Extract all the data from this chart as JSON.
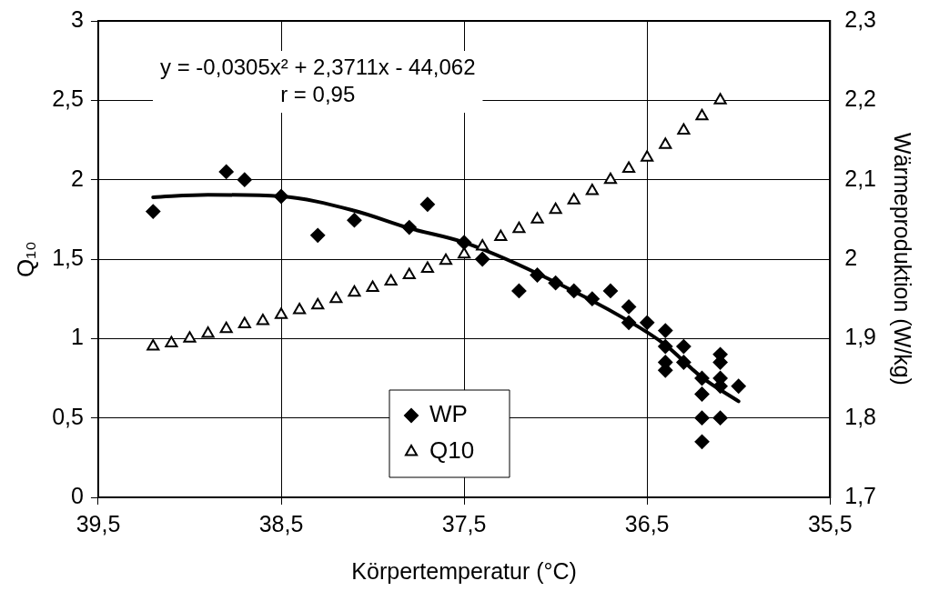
{
  "chart_data": {
    "type": "scatter",
    "xlabel": "Körpertemperatur (°C)",
    "ylabel": "Q₁₀",
    "y2label": "Wärmeproduktion (W/kg)",
    "xlim": [
      39.5,
      35.5
    ],
    "xticks": [
      {
        "value": 39.5,
        "label": "39,5"
      },
      {
        "value": 38.5,
        "label": "38,5"
      },
      {
        "value": 37.5,
        "label": "37,5"
      },
      {
        "value": 36.5,
        "label": "36,5"
      },
      {
        "value": 35.5,
        "label": "35,5"
      }
    ],
    "ylim": [
      0,
      3
    ],
    "yticks": [
      {
        "value": 0,
        "label": "0"
      },
      {
        "value": 0.5,
        "label": "0,5"
      },
      {
        "value": 1,
        "label": "1"
      },
      {
        "value": 1.5,
        "label": "1,5"
      },
      {
        "value": 2,
        "label": "2"
      },
      {
        "value": 2.5,
        "label": "2,5"
      },
      {
        "value": 3,
        "label": "3"
      }
    ],
    "y2lim": [
      1.7,
      2.3
    ],
    "y2ticks": [
      {
        "value": 1.7,
        "label": "1,7"
      },
      {
        "value": 1.8,
        "label": "1,8"
      },
      {
        "value": 1.9,
        "label": "1,9"
      },
      {
        "value": 2,
        "label": "2"
      },
      {
        "value": 2.1,
        "label": "2,1"
      },
      {
        "value": 2.2,
        "label": "2,2"
      },
      {
        "value": 2.3,
        "label": "2,3"
      }
    ],
    "grid": true,
    "legend": "bottom",
    "annotations": [
      "y = -0,0305x² + 2,3711x - 44,062",
      "r = 0,95"
    ],
    "series": [
      {
        "name": "WP",
        "color": "#000000",
        "marker": "diamond",
        "axis": "y2",
        "x": [
          39.2,
          38.8,
          38.7,
          38.5,
          38.3,
          38.1,
          37.8,
          37.7,
          37.5,
          37.4,
          37.2,
          37.1,
          37.0,
          36.9,
          36.8,
          36.7,
          36.6,
          36.6,
          36.5,
          36.4,
          36.4,
          36.4,
          36.4,
          36.3,
          36.3,
          36.2,
          36.2,
          36.2,
          36.2,
          36.1,
          36.1,
          36.1,
          36.1,
          36.1,
          36.0
        ],
        "values": [
          2.06,
          2.11,
          2.1,
          2.079,
          2.03,
          2.049,
          2.04,
          2.069,
          2.021,
          2.0,
          1.96,
          1.98,
          1.97,
          1.96,
          1.95,
          1.96,
          1.94,
          1.92,
          1.92,
          1.91,
          1.89,
          1.87,
          1.86,
          1.89,
          1.87,
          1.85,
          1.83,
          1.8,
          1.77,
          1.88,
          1.87,
          1.85,
          1.84,
          1.8,
          1.84
        ]
      },
      {
        "name": "Q10",
        "color": "#000000",
        "marker": "triangle",
        "x": [
          39.2,
          39.1,
          39.0,
          38.9,
          38.8,
          38.7,
          38.6,
          38.5,
          38.4,
          38.3,
          38.2,
          38.1,
          38.0,
          37.9,
          37.8,
          37.7,
          37.6,
          37.5,
          37.4,
          37.3,
          37.2,
          37.1,
          37.0,
          36.9,
          36.8,
          36.7,
          36.6,
          36.5,
          36.4,
          36.3,
          36.2,
          36.1
        ],
        "values": [
          0.95,
          0.97,
          1.0,
          1.03,
          1.06,
          1.09,
          1.11,
          1.15,
          1.18,
          1.21,
          1.25,
          1.29,
          1.32,
          1.36,
          1.4,
          1.44,
          1.49,
          1.53,
          1.58,
          1.64,
          1.69,
          1.75,
          1.81,
          1.87,
          1.93,
          2.0,
          2.07,
          2.14,
          2.22,
          2.31,
          2.4,
          2.5
        ]
      },
      {
        "type": "line",
        "color": "#000000",
        "marker": "none",
        "axis": "y2",
        "x": [
          39.2,
          38.9,
          38.5,
          38.1,
          37.8,
          37.5,
          37.1,
          36.6,
          36.4,
          36.2,
          36.0
        ],
        "values": [
          2.078,
          2.081,
          2.079,
          2.061,
          2.039,
          2.021,
          1.982,
          1.922,
          1.892,
          1.851,
          1.821
        ]
      }
    ]
  }
}
